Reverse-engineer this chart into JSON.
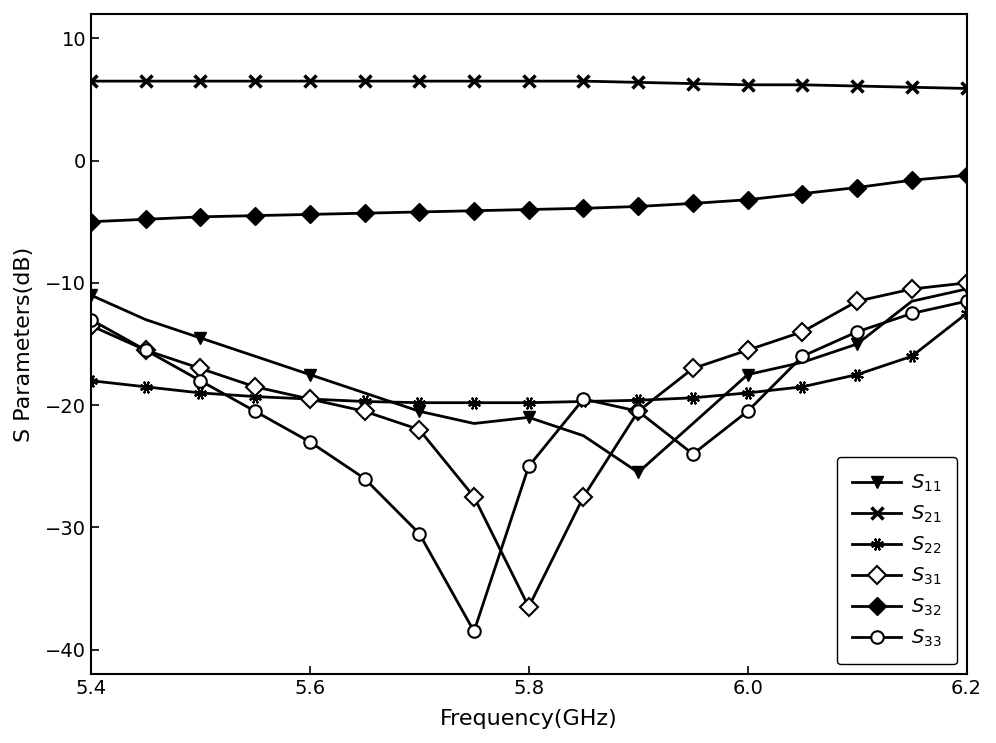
{
  "xlabel": "Frequency(GHz)",
  "ylabel": "S Parameters(dB)",
  "xlim": [
    5.4,
    6.2
  ],
  "ylim": [
    -42,
    12
  ],
  "yticks": [
    -40,
    -30,
    -20,
    -10,
    0,
    10
  ],
  "xticks": [
    5.4,
    5.6,
    5.8,
    6.0,
    6.2
  ],
  "freq": [
    5.4,
    5.45,
    5.5,
    5.55,
    5.6,
    5.65,
    5.7,
    5.75,
    5.8,
    5.85,
    5.9,
    5.95,
    6.0,
    6.05,
    6.1,
    6.15,
    6.2
  ],
  "S11": [
    -11.0,
    -13.0,
    -14.5,
    -16.0,
    -17.5,
    -19.0,
    -20.5,
    -21.5,
    -21.0,
    -22.5,
    -25.5,
    -21.5,
    -17.5,
    -16.5,
    -15.0,
    -11.5,
    -10.5
  ],
  "S21": [
    6.5,
    6.5,
    6.5,
    6.5,
    6.5,
    6.5,
    6.5,
    6.5,
    6.5,
    6.5,
    6.4,
    6.3,
    6.2,
    6.2,
    6.1,
    6.0,
    5.9
  ],
  "S22": [
    -18.0,
    -18.5,
    -19.0,
    -19.3,
    -19.5,
    -19.7,
    -19.8,
    -19.8,
    -19.8,
    -19.7,
    -19.6,
    -19.4,
    -19.0,
    -18.5,
    -17.5,
    -16.0,
    -12.5
  ],
  "S31": [
    -13.5,
    -15.5,
    -17.0,
    -18.5,
    -19.5,
    -20.5,
    -22.0,
    -27.5,
    -36.5,
    -27.5,
    -20.5,
    -17.0,
    -15.5,
    -14.0,
    -11.5,
    -10.5,
    -10.0
  ],
  "S32": [
    -5.0,
    -4.8,
    -4.6,
    -4.5,
    -4.4,
    -4.3,
    -4.2,
    -4.1,
    -4.0,
    -3.9,
    -3.75,
    -3.5,
    -3.2,
    -2.7,
    -2.2,
    -1.6,
    -1.2
  ],
  "S33": [
    -13.0,
    -15.5,
    -18.0,
    -20.5,
    -23.0,
    -26.0,
    -30.5,
    -38.5,
    -25.0,
    -19.5,
    -20.5,
    -24.0,
    -20.5,
    -16.0,
    -14.0,
    -12.5,
    -11.5
  ],
  "marker_every_S11": 2,
  "marker_every_S21": 1,
  "marker_every_S22": 1,
  "marker_every_S31": 1,
  "marker_every_S32": 1,
  "marker_every_S33": 1,
  "linewidth": 2.0,
  "markersize": 9,
  "legend_fontsize": 14,
  "tick_fontsize": 14,
  "label_fontsize": 16
}
